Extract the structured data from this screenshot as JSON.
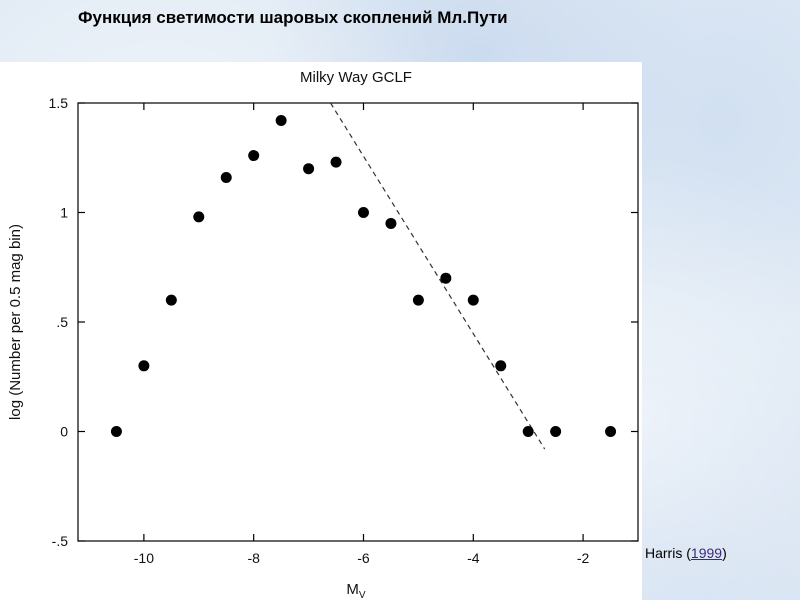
{
  "slide": {
    "title": "Функция светимости  шаровых скоплений Мл.Пути"
  },
  "credit": {
    "author": "Harris",
    "open_paren": " (",
    "year": "1999",
    "close_paren": ")"
  },
  "chart_data": {
    "type": "scatter",
    "title": "Milky Way GCLF",
    "xlabel_main": "M",
    "xlabel_sub": "V",
    "ylabel": "log (Number per 0.5 mag bin)",
    "xlim": [
      -11.2,
      -1.0
    ],
    "ylim": [
      -0.5,
      1.5
    ],
    "xticks": [
      -10,
      -8,
      -6,
      -4,
      -2
    ],
    "xtick_labels": [
      "-10",
      "-8",
      "-6",
      "-4",
      "-2"
    ],
    "yticks": [
      -0.5,
      0,
      0.5,
      1,
      1.5
    ],
    "ytick_labels": [
      "-.5",
      "0",
      ".5",
      "1",
      "1.5"
    ],
    "series": [
      {
        "x": [
          -10.5,
          -10.0,
          -9.5,
          -9.0,
          -8.5,
          -8.0,
          -7.5,
          -7.0,
          -6.5,
          -6.0,
          -5.5,
          -5.0,
          -4.5,
          -4.0,
          -3.5,
          -3.0,
          -2.5,
          -1.5
        ],
        "y": [
          0.0,
          0.3,
          0.6,
          0.98,
          1.16,
          1.26,
          1.42,
          1.2,
          1.23,
          1.0,
          0.95,
          0.6,
          0.7,
          0.6,
          0.3,
          0.0,
          0.0,
          0.0
        ]
      }
    ],
    "fit_line": {
      "style": "dashed",
      "x": [
        -6.6,
        -2.7
      ],
      "y": [
        1.5,
        -0.08
      ]
    },
    "grid": false
  }
}
